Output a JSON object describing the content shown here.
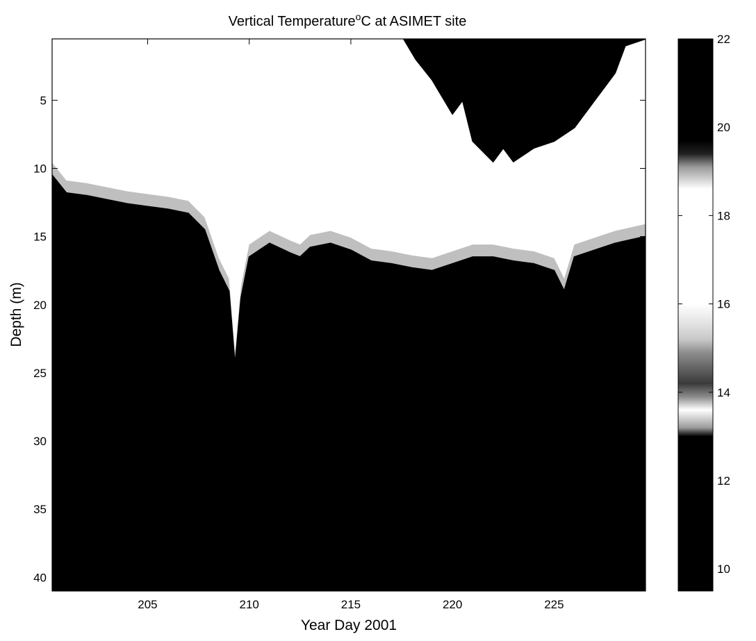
{
  "chart_data": {
    "type": "heatmap",
    "title": "Vertical Temperature",
    "title_superscript": "o",
    "title_suffix": "C at ASIMET site",
    "xlabel": "Year Day 2001",
    "ylabel": "Depth (m)",
    "xlim": [
      200.3,
      229.5
    ],
    "ylim": [
      0.5,
      41
    ],
    "y_reversed": true,
    "x_ticks": [
      205,
      210,
      215,
      220,
      225
    ],
    "x_tick_labels": [
      "205",
      "210",
      "215",
      "220",
      "225"
    ],
    "y_ticks": [
      5,
      10,
      15,
      20,
      25,
      30,
      35,
      40
    ],
    "y_tick_labels": [
      "5",
      "10",
      "15",
      "20",
      "25",
      "30",
      "35",
      "40"
    ],
    "colorbar": {
      "range": [
        9.5,
        22
      ],
      "ticks": [
        10,
        12,
        14,
        16,
        18,
        20,
        22
      ],
      "tick_labels": [
        "10",
        "12",
        "14",
        "16",
        "18",
        "20",
        "22"
      ],
      "color_stops": [
        {
          "value": 9.5,
          "color": "#000000"
        },
        {
          "value": 13.0,
          "color": "#000000"
        },
        {
          "value": 13.2,
          "color": "#9c9c9c"
        },
        {
          "value": 13.6,
          "color": "#ffffff"
        },
        {
          "value": 13.9,
          "color": "#8a8a8a"
        },
        {
          "value": 14.2,
          "color": "#3a3a3a"
        },
        {
          "value": 14.9,
          "color": "#8e8e8e"
        },
        {
          "value": 15.2,
          "color": "#c8c8c8"
        },
        {
          "value": 15.6,
          "color": "#e6e6e6"
        },
        {
          "value": 16.0,
          "color": "#ffffff"
        },
        {
          "value": 18.6,
          "color": "#ffffff"
        },
        {
          "value": 19.1,
          "color": "#9a9a9a"
        },
        {
          "value": 19.4,
          "color": "#202020"
        },
        {
          "value": 19.7,
          "color": "#000000"
        },
        {
          "value": 22.0,
          "color": "#000000"
        }
      ]
    },
    "thermocline_depth": {
      "day": [
        200.3,
        201,
        202,
        203,
        204,
        205,
        206,
        207,
        207.8,
        208.5,
        209.0,
        209.3,
        209.6,
        210,
        210.5,
        211,
        212,
        212.5,
        213,
        214,
        215,
        216,
        217,
        218,
        219,
        220,
        221,
        222,
        223,
        224,
        225,
        225.5,
        226,
        227,
        228,
        229.5
      ],
      "depth_m": [
        10.5,
        11.8,
        12.0,
        12.3,
        12.6,
        12.8,
        13.0,
        13.3,
        14.5,
        17.5,
        19.0,
        24.5,
        19.5,
        16.5,
        16.0,
        15.5,
        16.2,
        16.5,
        15.8,
        15.5,
        16.0,
        16.8,
        17.0,
        17.3,
        17.5,
        17.0,
        16.5,
        16.5,
        16.8,
        17.0,
        17.5,
        19.0,
        16.5,
        16.0,
        15.5,
        15.0
      ]
    },
    "warm_layer_bottom": {
      "day": [
        217.6,
        218.2,
        219,
        220,
        220.5,
        221,
        222,
        222.5,
        223,
        224,
        225,
        226,
        227,
        228,
        228.5,
        229.5
      ],
      "depth_m": [
        0.5,
        2.0,
        3.5,
        6.0,
        5.0,
        8.0,
        9.5,
        8.5,
        9.5,
        8.5,
        8.0,
        7.0,
        5.0,
        3.0,
        1.0,
        0.5
      ]
    }
  }
}
